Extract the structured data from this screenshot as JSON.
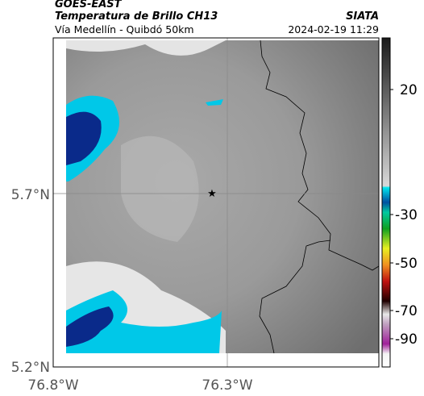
{
  "header": {
    "satellite": "GOES-EAST",
    "product": "Temperatura de Brillo CH13",
    "agency": "SIATA",
    "location": "Vía Medellín - Quibdó 50km",
    "timestamp": "2024-02-19 11:29"
  },
  "axes": {
    "latitude_labels": [
      "5.7°N",
      "5.2°N"
    ],
    "longitude_labels": [
      "76.8°W",
      "76.3°W"
    ]
  },
  "colorbar": {
    "ticks": [
      20,
      -30,
      -50,
      -70,
      -90
    ]
  }
}
